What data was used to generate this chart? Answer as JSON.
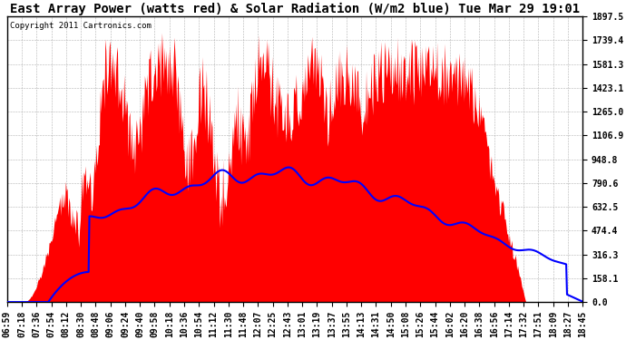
{
  "title": "East Array Power (watts red) & Solar Radiation (W/m2 blue) Tue Mar 29 19:01",
  "copyright": "Copyright 2011 Cartronics.com",
  "background_color": "#ffffff",
  "plot_bg_color": "#ffffff",
  "grid_color": "#aaaaaa",
  "y_max": 1897.5,
  "y_min": 0.0,
  "y_ticks": [
    0.0,
    158.1,
    316.3,
    474.4,
    632.5,
    790.6,
    948.8,
    1106.9,
    1265.0,
    1423.1,
    1581.3,
    1739.4,
    1897.5
  ],
  "x_labels": [
    "06:59",
    "07:18",
    "07:36",
    "07:54",
    "08:12",
    "08:30",
    "08:48",
    "09:06",
    "09:24",
    "09:40",
    "09:58",
    "10:18",
    "10:36",
    "10:54",
    "11:12",
    "11:30",
    "11:48",
    "12:07",
    "12:25",
    "12:43",
    "13:01",
    "13:19",
    "13:37",
    "13:55",
    "14:13",
    "14:31",
    "14:50",
    "15:08",
    "15:26",
    "15:44",
    "16:02",
    "16:20",
    "16:38",
    "16:56",
    "17:14",
    "17:32",
    "17:51",
    "18:09",
    "18:27",
    "18:45"
  ],
  "red_color": "#ff0000",
  "blue_color": "#0000ff",
  "title_fontsize": 10,
  "tick_fontsize": 7.0,
  "copyright_fontsize": 6.5
}
